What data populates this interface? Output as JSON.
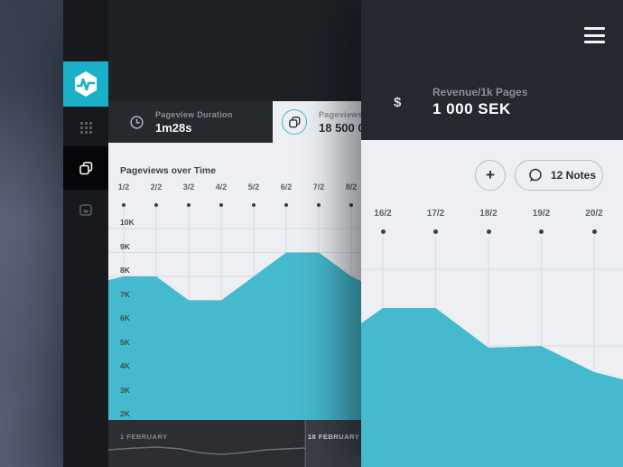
{
  "colors": {
    "teal_chart": "#45b9cd",
    "teal_logo": "#18b1c7",
    "panel_light": "#edeff3",
    "panel_dark": "#25282e"
  },
  "sidebar": {
    "items": [
      {
        "icon": "apps-grid-icon",
        "active": false
      },
      {
        "icon": "pages-icon",
        "active": true
      },
      {
        "icon": "browser-window-icon",
        "active": false
      }
    ]
  },
  "left_panel": {
    "tabs": [
      {
        "icon": "clock-icon",
        "label": "Pageview Duration",
        "value": "1m28s",
        "active": false
      },
      {
        "icon": "pages-icon",
        "label": "Pageviews",
        "value": "18 500 0",
        "active": true
      }
    ],
    "chart_title": "Pageviews over Time",
    "scrubber": {
      "start": "1 FEBRUARY",
      "end": "18 FEBRUARY"
    }
  },
  "right_panel": {
    "menu_icon": "hamburger-menu-icon",
    "stat": {
      "currency": "$",
      "label": "Revenue/1k Pages",
      "value": "1 000 SEK"
    },
    "add_button": "+",
    "notes_button": "12 Notes"
  },
  "chart_data": [
    {
      "type": "area",
      "title": "Pageviews over Time",
      "x_labels": [
        "1/2",
        "2/2",
        "3/2",
        "4/2",
        "5/2",
        "6/2",
        "7/2",
        "8/2"
      ],
      "y_tick_labels": [
        "10K",
        "9K",
        "8K",
        "7K",
        "6K",
        "5K",
        "4K",
        "3K",
        "2K"
      ],
      "values_k": [
        8,
        8,
        7,
        7,
        8,
        9,
        9,
        8
      ],
      "edge_values_k": {
        "left": 7.85,
        "right": 7.8
      },
      "ylim": [
        2,
        10
      ],
      "grid": true,
      "legend": "none",
      "fill": "#45b9cd"
    },
    {
      "type": "area",
      "title": "",
      "x_labels": [
        "16/2",
        "17/2",
        "18/2",
        "19/2",
        "20/2"
      ],
      "y_axis": "unlabeled",
      "values_frac_of_height": [
        0.31,
        0.31,
        0.482,
        0.475,
        0.588
      ],
      "edge_frac_of_height": {
        "left": 0.376,
        "right": 0.62
      },
      "grid": true,
      "legend": "none",
      "fill": "#45b9cd"
    }
  ]
}
